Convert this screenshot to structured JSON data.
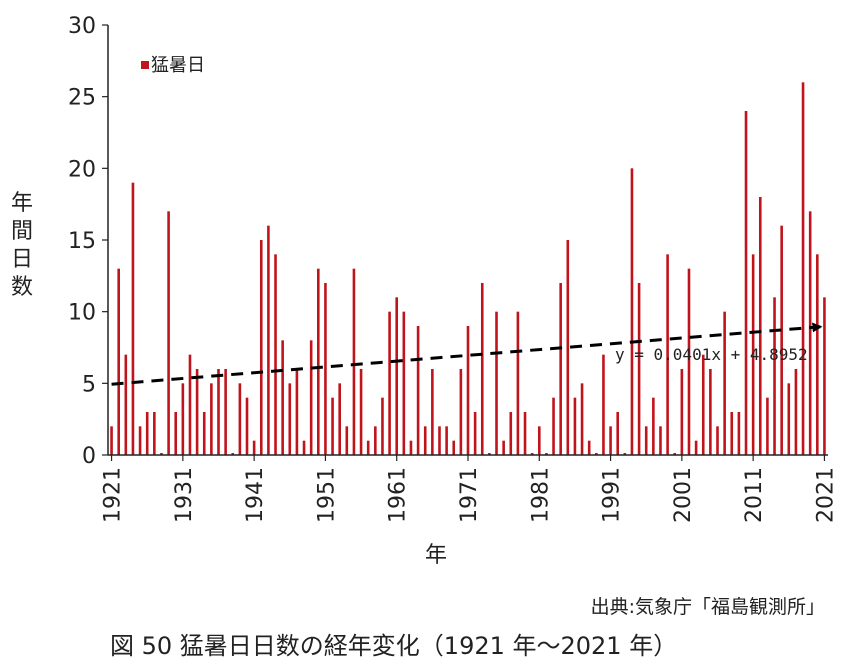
{
  "chart_data": {
    "type": "bar",
    "xlabel": "年",
    "ylabel": "年間日数",
    "ylim": [
      0,
      30
    ],
    "yticks": [
      "0",
      "5",
      "10",
      "15",
      "20",
      "25",
      "30"
    ],
    "xlim": [
      1921,
      2021
    ],
    "xticks": [
      "1921",
      "1931",
      "1941",
      "1951",
      "1961",
      "1971",
      "1981",
      "1991",
      "2001",
      "2011",
      "2021"
    ],
    "legend": {
      "label": "猛暑日",
      "placement": "top-left"
    },
    "grid": false,
    "series": [
      {
        "name": "猛暑日",
        "color": "#c0141c",
        "x": [
          1921,
          1922,
          1923,
          1924,
          1925,
          1926,
          1927,
          1928,
          1929,
          1930,
          1931,
          1932,
          1933,
          1934,
          1935,
          1936,
          1937,
          1938,
          1939,
          1940,
          1941,
          1942,
          1943,
          1944,
          1945,
          1946,
          1947,
          1948,
          1949,
          1950,
          1951,
          1952,
          1953,
          1954,
          1955,
          1956,
          1957,
          1958,
          1959,
          1960,
          1961,
          1962,
          1963,
          1964,
          1965,
          1966,
          1967,
          1968,
          1969,
          1970,
          1971,
          1972,
          1973,
          1974,
          1975,
          1976,
          1977,
          1978,
          1979,
          1980,
          1981,
          1982,
          1983,
          1984,
          1985,
          1986,
          1987,
          1988,
          1989,
          1990,
          1991,
          1992,
          1993,
          1994,
          1995,
          1996,
          1997,
          1998,
          1999,
          2000,
          2001,
          2002,
          2003,
          2004,
          2005,
          2006,
          2007,
          2008,
          2009,
          2010,
          2011,
          2012,
          2013,
          2014,
          2015,
          2016,
          2017,
          2018,
          2019,
          2020,
          2021
        ],
        "values": [
          2,
          13,
          7,
          19,
          2,
          3,
          3,
          0,
          17,
          3,
          5,
          7,
          6,
          3,
          5,
          6,
          6,
          0,
          5,
          4,
          1,
          15,
          16,
          14,
          8,
          5,
          6,
          1,
          8,
          13,
          12,
          4,
          5,
          2,
          13,
          6,
          1,
          2,
          4,
          10,
          11,
          10,
          1,
          9,
          2,
          6,
          2,
          2,
          1,
          6,
          9,
          3,
          12,
          0,
          10,
          1,
          3,
          10,
          3,
          0,
          2,
          0,
          4,
          12,
          15,
          4,
          5,
          1,
          0,
          7,
          2,
          3,
          0,
          20,
          12,
          2,
          4,
          2,
          14,
          0,
          6,
          13,
          1,
          7,
          6,
          2,
          10,
          3,
          3,
          24,
          14,
          18,
          4,
          11,
          16,
          5,
          6,
          26,
          17,
          14,
          11
        ]
      }
    ],
    "trendline": {
      "label": "y = 0.0401x + 4.8952",
      "slope": 0.0401,
      "intercept": 4.8952,
      "style": "dashed",
      "color": "#000000"
    }
  },
  "source": "出典:気象庁「福島観測所」",
  "caption": "図 50 猛暑日日数の経年変化（1921 年～2021 年）"
}
